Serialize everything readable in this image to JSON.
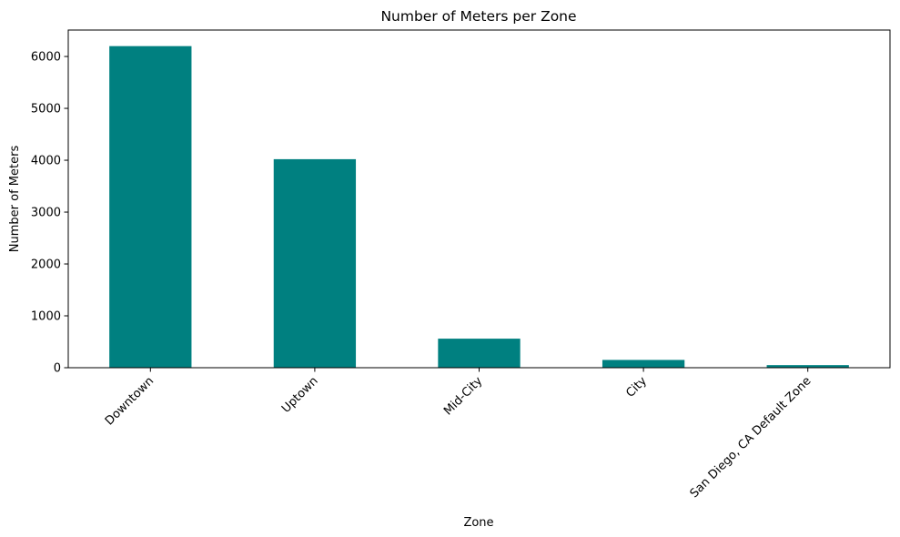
{
  "chart_data": {
    "type": "bar",
    "title": "Number of Meters per Zone",
    "xlabel": "Zone",
    "ylabel": "Number of Meters",
    "categories": [
      "Downtown",
      "Uptown",
      "Mid-City",
      "City",
      "San Diego, CA Default Zone"
    ],
    "values": [
      6200,
      4020,
      560,
      150,
      50
    ],
    "ylim": [
      0,
      6510
    ],
    "yticks": [
      "0",
      "1000",
      "2000",
      "3000",
      "4000",
      "5000",
      "6000"
    ],
    "ytick_values": [
      0,
      1000,
      2000,
      3000,
      4000,
      5000,
      6000
    ],
    "bar_color": "#008080",
    "grid": false,
    "legend": "none"
  }
}
